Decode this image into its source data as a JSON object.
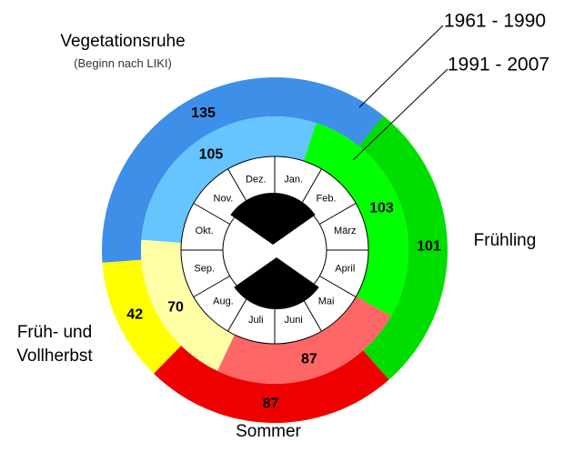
{
  "chart_data": {
    "type": "donut",
    "categories": [
      "Vegetationsruhe",
      "Frühling",
      "Sommer",
      "Früh- und Vollherbst"
    ],
    "annotation": "(Beginn nach LIKI)",
    "series": [
      {
        "name": "1961 - 1990",
        "values": [
          135,
          101,
          87,
          42
        ],
        "colors": [
          "#3d8fe8",
          "#00dd00",
          "#ee0000",
          "#ffff00"
        ]
      },
      {
        "name": "1991 - 2007",
        "values": [
          105,
          103,
          87,
          70
        ],
        "colors": [
          "#66c4ff",
          "#00ff00",
          "#ff6666",
          "#ffffa6"
        ]
      }
    ],
    "months": [
      "Jan.",
      "Feb.",
      "März",
      "April",
      "Mai",
      "Juni",
      "Juli",
      "Aug.",
      "Sep.",
      "Okt.",
      "Nov.",
      "Dez."
    ]
  }
}
